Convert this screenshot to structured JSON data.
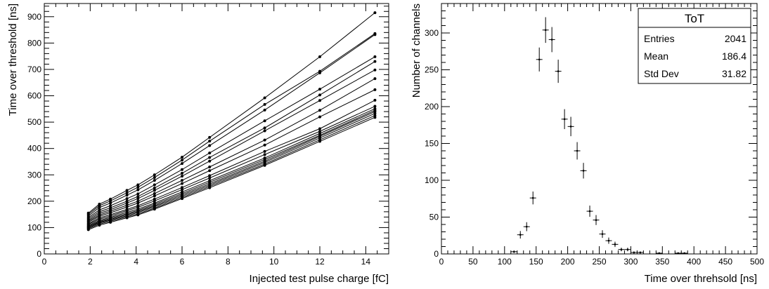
{
  "chart_data": [
    {
      "type": "line",
      "title": "",
      "xlabel": "Injected test pulse charge [fC]",
      "ylabel": "Time over threshold [ns]",
      "xlim": [
        0,
        15
      ],
      "ylim": [
        0,
        950
      ],
      "x_ticks": [
        0,
        2,
        4,
        6,
        8,
        10,
        12,
        14
      ],
      "y_ticks": [
        0,
        100,
        200,
        300,
        400,
        500,
        600,
        700,
        800,
        900
      ],
      "x": [
        1.92,
        2.4,
        2.88,
        3.6,
        4.08,
        4.8,
        6.0,
        7.2,
        9.6,
        12.0,
        14.4
      ],
      "series": [
        {
          "values": [
            155,
            189,
            208,
            241,
            262,
            300,
            367,
            442,
            592,
            748,
            915
          ]
        },
        {
          "values": [
            150,
            183,
            201,
            232,
            253,
            290,
            356,
            428,
            567,
            693,
            836
          ]
        },
        {
          "values": [
            144,
            176,
            193,
            223,
            243,
            279,
            343,
            411,
            546,
            687,
            832
          ]
        },
        {
          "values": [
            138,
            167,
            183,
            210,
            228,
            262,
            320,
            383,
            505,
            625,
            748
          ]
        },
        {
          "values": [
            133,
            160,
            175,
            200,
            218,
            250,
            306,
            366,
            478,
            603,
            730
          ]
        },
        {
          "values": [
            128,
            154,
            168,
            193,
            210,
            241,
            295,
            352,
            467,
            582,
            698
          ]
        },
        {
          "values": [
            124,
            148,
            162,
            185,
            200,
            229,
            279,
            330,
            432,
            545,
            665
          ]
        },
        {
          "values": [
            120,
            143,
            156,
            178,
            193,
            220,
            267,
            316,
            413,
            520,
            623
          ]
        },
        {
          "values": [
            115,
            137,
            149,
            169,
            183,
            208,
            252,
            297,
            389,
            475,
            583
          ]
        },
        {
          "values": [
            112,
            132,
            144,
            164,
            177,
            201,
            244,
            288,
            377,
            465,
            560
          ]
        },
        {
          "values": [
            108,
            127,
            139,
            158,
            170,
            193,
            235,
            278,
            364,
            457,
            551
          ]
        },
        {
          "values": [
            105,
            123,
            135,
            153,
            165,
            188,
            229,
            272,
            358,
            450,
            545
          ]
        },
        {
          "values": [
            102,
            120,
            131,
            149,
            161,
            183,
            224,
            266,
            352,
            446,
            540
          ]
        },
        {
          "values": [
            99,
            117,
            128,
            145,
            157,
            179,
            219,
            261,
            347,
            440,
            533
          ]
        },
        {
          "values": [
            96,
            113,
            124,
            141,
            152,
            174,
            214,
            256,
            341,
            433,
            525
          ]
        },
        {
          "values": [
            92,
            109,
            120,
            137,
            148,
            170,
            210,
            251,
            336,
            427,
            518
          ]
        }
      ]
    },
    {
      "type": "bar",
      "subtype": "histogram-with-error-bars",
      "title": "",
      "xlabel": "Time over threhsold [ns]",
      "ylabel": "Number of channels",
      "xlim": [
        0,
        500
      ],
      "ylim": [
        0,
        340
      ],
      "bin_width": 10,
      "x_ticks": [
        0,
        50,
        100,
        150,
        200,
        250,
        300,
        350,
        400,
        450,
        500
      ],
      "y_ticks": [
        0,
        50,
        100,
        150,
        200,
        250,
        300
      ],
      "bins": [
        {
          "x": 115,
          "y": 3
        },
        {
          "x": 125,
          "y": 26
        },
        {
          "x": 135,
          "y": 37
        },
        {
          "x": 145,
          "y": 76
        },
        {
          "x": 155,
          "y": 264
        },
        {
          "x": 165,
          "y": 304
        },
        {
          "x": 175,
          "y": 291
        },
        {
          "x": 185,
          "y": 248
        },
        {
          "x": 195,
          "y": 183
        },
        {
          "x": 205,
          "y": 173
        },
        {
          "x": 215,
          "y": 140
        },
        {
          "x": 225,
          "y": 113
        },
        {
          "x": 235,
          "y": 58
        },
        {
          "x": 245,
          "y": 46
        },
        {
          "x": 255,
          "y": 27
        },
        {
          "x": 265,
          "y": 18
        },
        {
          "x": 275,
          "y": 13
        },
        {
          "x": 285,
          "y": 6
        },
        {
          "x": 295,
          "y": 6
        },
        {
          "x": 305,
          "y": 2
        },
        {
          "x": 315,
          "y": 2
        },
        {
          "x": 345,
          "y": 1
        },
        {
          "x": 375,
          "y": 1
        },
        {
          "x": 385,
          "y": 1
        }
      ],
      "stats_box": {
        "title": "ToT",
        "rows": [
          {
            "label": "Entries",
            "value": "2041"
          },
          {
            "label": "Mean",
            "value": "186.4"
          },
          {
            "label": "Std Dev",
            "value": "31.82"
          }
        ]
      }
    }
  ]
}
